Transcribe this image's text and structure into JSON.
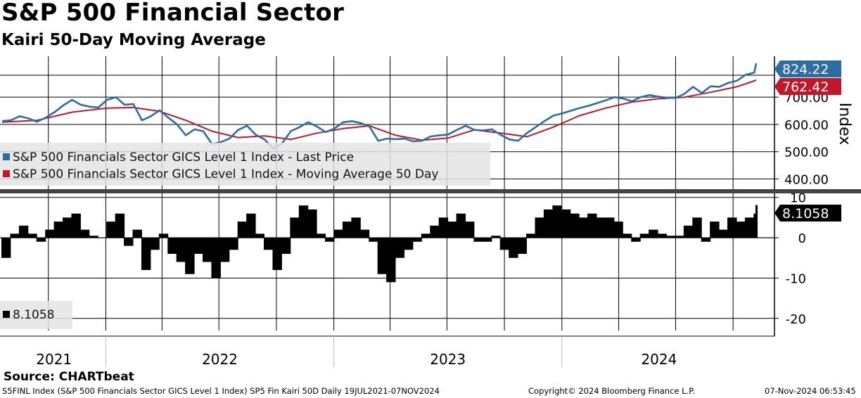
{
  "header": {
    "title": "S&P 500 Financial Sector",
    "subtitle": "Kairi 50-Day Moving Average"
  },
  "colors": {
    "price": "#2e6da4",
    "ma": "#c0182b",
    "kairi": "#000000",
    "grid": "#000000",
    "separator": "#444444"
  },
  "chart_data": [
    {
      "type": "line",
      "panel": "upper",
      "ylabel": "Index",
      "ylim": [
        360,
        850
      ],
      "y_ticks": [
        "400.00",
        "500.00",
        "600.00",
        "700.00"
      ],
      "x_date_range": [
        "2021-07-19",
        "2024-11-07"
      ],
      "x_labels": [
        "2021",
        "2022",
        "2023",
        "2024"
      ],
      "legend": {
        "position": "lower-left",
        "entries": [
          "S&P 500 Financials Sector GICS Level 1 Index - Last Price",
          "S&P 500 Financials Sector GICS Level 1 Index - Moving Average 50 Day"
        ]
      },
      "last_value_labels": {
        "price": "824.22",
        "ma": "762.42"
      },
      "series": [
        {
          "name": "S&P 500 Financials Sector GICS Level 1 Index - Last Price",
          "points": [
            [
              "2021-07-19",
              612
            ],
            [
              "2021-08-02",
              615
            ],
            [
              "2021-08-16",
              630
            ],
            [
              "2021-08-30",
              622
            ],
            [
              "2021-09-13",
              610
            ],
            [
              "2021-09-27",
              625
            ],
            [
              "2021-10-11",
              645
            ],
            [
              "2021-10-25",
              670
            ],
            [
              "2021-11-08",
              690
            ],
            [
              "2021-11-22",
              672
            ],
            [
              "2021-12-06",
              665
            ],
            [
              "2021-12-20",
              662
            ],
            [
              "2022-01-03",
              690
            ],
            [
              "2022-01-17",
              700
            ],
            [
              "2022-01-31",
              672
            ],
            [
              "2022-02-14",
              675
            ],
            [
              "2022-02-28",
              615
            ],
            [
              "2022-03-14",
              630
            ],
            [
              "2022-03-28",
              652
            ],
            [
              "2022-04-11",
              625
            ],
            [
              "2022-04-25",
              600
            ],
            [
              "2022-05-09",
              560
            ],
            [
              "2022-05-23",
              582
            ],
            [
              "2022-06-06",
              575
            ],
            [
              "2022-06-20",
              528
            ],
            [
              "2022-07-04",
              535
            ],
            [
              "2022-07-18",
              548
            ],
            [
              "2022-08-01",
              580
            ],
            [
              "2022-08-15",
              595
            ],
            [
              "2022-08-29",
              562
            ],
            [
              "2022-09-12",
              545
            ],
            [
              "2022-09-26",
              512
            ],
            [
              "2022-10-10",
              530
            ],
            [
              "2022-10-24",
              575
            ],
            [
              "2022-11-07",
              590
            ],
            [
              "2022-11-21",
              608
            ],
            [
              "2022-12-05",
              592
            ],
            [
              "2022-12-19",
              572
            ],
            [
              "2023-01-02",
              585
            ],
            [
              "2023-01-16",
              608
            ],
            [
              "2023-01-30",
              612
            ],
            [
              "2023-02-13",
              605
            ],
            [
              "2023-02-27",
              592
            ],
            [
              "2023-03-13",
              540
            ],
            [
              "2023-03-27",
              548
            ],
            [
              "2023-04-10",
              546
            ],
            [
              "2023-04-24",
              548
            ],
            [
              "2023-05-08",
              538
            ],
            [
              "2023-05-22",
              540
            ],
            [
              "2023-06-05",
              556
            ],
            [
              "2023-06-19",
              560
            ],
            [
              "2023-07-03",
              563
            ],
            [
              "2023-07-17",
              580
            ],
            [
              "2023-07-31",
              595
            ],
            [
              "2023-08-14",
              580
            ],
            [
              "2023-08-28",
              578
            ],
            [
              "2023-09-11",
              582
            ],
            [
              "2023-09-25",
              562
            ],
            [
              "2023-10-09",
              545
            ],
            [
              "2023-10-23",
              540
            ],
            [
              "2023-11-06",
              568
            ],
            [
              "2023-11-20",
              590
            ],
            [
              "2023-12-04",
              612
            ],
            [
              "2023-12-18",
              632
            ],
            [
              "2024-01-01",
              640
            ],
            [
              "2024-01-15",
              650
            ],
            [
              "2024-01-29",
              660
            ],
            [
              "2024-02-12",
              668
            ],
            [
              "2024-02-26",
              678
            ],
            [
              "2024-03-11",
              688
            ],
            [
              "2024-03-25",
              700
            ],
            [
              "2024-04-08",
              695
            ],
            [
              "2024-04-22",
              685
            ],
            [
              "2024-05-06",
              700
            ],
            [
              "2024-05-20",
              708
            ],
            [
              "2024-06-03",
              702
            ],
            [
              "2024-06-17",
              698
            ],
            [
              "2024-07-01",
              697
            ],
            [
              "2024-07-15",
              712
            ],
            [
              "2024-07-29",
              738
            ],
            [
              "2024-08-12",
              715
            ],
            [
              "2024-08-26",
              740
            ],
            [
              "2024-09-09",
              738
            ],
            [
              "2024-09-23",
              752
            ],
            [
              "2024-10-07",
              760
            ],
            [
              "2024-10-21",
              782
            ],
            [
              "2024-11-04",
              790
            ],
            [
              "2024-11-07",
              824.22
            ]
          ]
        },
        {
          "name": "S&P 500 Financials Sector GICS Level 1 Index - Moving Average 50 Day",
          "points": [
            [
              "2021-07-19",
              608
            ],
            [
              "2021-09-13",
              615
            ],
            [
              "2021-11-08",
              645
            ],
            [
              "2022-01-03",
              660
            ],
            [
              "2022-02-14",
              662
            ],
            [
              "2022-03-28",
              648
            ],
            [
              "2022-05-09",
              615
            ],
            [
              "2022-06-20",
              575
            ],
            [
              "2022-08-01",
              552
            ],
            [
              "2022-09-12",
              558
            ],
            [
              "2022-10-24",
              545
            ],
            [
              "2022-12-05",
              568
            ],
            [
              "2023-01-16",
              585
            ],
            [
              "2023-02-27",
              595
            ],
            [
              "2023-04-10",
              560
            ],
            [
              "2023-05-22",
              542
            ],
            [
              "2023-07-03",
              550
            ],
            [
              "2023-08-14",
              580
            ],
            [
              "2023-09-25",
              568
            ],
            [
              "2023-11-06",
              555
            ],
            [
              "2023-12-18",
              590
            ],
            [
              "2024-01-29",
              632
            ],
            [
              "2024-03-11",
              660
            ],
            [
              "2024-04-22",
              682
            ],
            [
              "2024-06-03",
              694
            ],
            [
              "2024-07-15",
              700
            ],
            [
              "2024-08-26",
              718
            ],
            [
              "2024-10-07",
              738
            ],
            [
              "2024-11-07",
              762.42
            ]
          ]
        }
      ]
    },
    {
      "type": "bar",
      "panel": "lower",
      "ylim": [
        -23,
        11
      ],
      "y_ticks": [
        "10",
        "0",
        "-10",
        "-20"
      ],
      "x_date_range": [
        "2021-07-19",
        "2024-11-07"
      ],
      "legend": {
        "position": "lower-left",
        "entries": [
          "8.1058"
        ]
      },
      "last_value_label": "8.1058",
      "series": [
        {
          "name": "8.1058",
          "points": [
            [
              "2021-07-19",
              -5
            ],
            [
              "2021-08-02",
              1
            ],
            [
              "2021-08-16",
              3
            ],
            [
              "2021-08-30",
              1
            ],
            [
              "2021-09-13",
              -1
            ],
            [
              "2021-09-27",
              2
            ],
            [
              "2021-10-11",
              4
            ],
            [
              "2021-10-25",
              5
            ],
            [
              "2021-11-08",
              6
            ],
            [
              "2021-11-22",
              2
            ],
            [
              "2021-12-06",
              0.5
            ],
            [
              "2021-12-20",
              0
            ],
            [
              "2022-01-03",
              4
            ],
            [
              "2022-01-17",
              6
            ],
            [
              "2022-01-31",
              -2
            ],
            [
              "2022-02-14",
              2
            ],
            [
              "2022-02-28",
              -8
            ],
            [
              "2022-03-14",
              -3
            ],
            [
              "2022-03-28",
              1
            ],
            [
              "2022-04-11",
              -4
            ],
            [
              "2022-04-25",
              -6
            ],
            [
              "2022-05-09",
              -9
            ],
            [
              "2022-05-23",
              -4
            ],
            [
              "2022-06-06",
              -6
            ],
            [
              "2022-06-20",
              -10
            ],
            [
              "2022-07-04",
              -6
            ],
            [
              "2022-07-18",
              -3
            ],
            [
              "2022-08-01",
              4
            ],
            [
              "2022-08-15",
              6
            ],
            [
              "2022-08-29",
              1
            ],
            [
              "2022-09-12",
              -3
            ],
            [
              "2022-09-26",
              -8
            ],
            [
              "2022-10-10",
              -4
            ],
            [
              "2022-10-24",
              5
            ],
            [
              "2022-11-07",
              8
            ],
            [
              "2022-11-21",
              7
            ],
            [
              "2022-12-05",
              1
            ],
            [
              "2022-12-19",
              -1
            ],
            [
              "2023-01-02",
              2
            ],
            [
              "2023-01-16",
              4
            ],
            [
              "2023-01-30",
              5
            ],
            [
              "2023-02-13",
              2
            ],
            [
              "2023-02-27",
              -1
            ],
            [
              "2023-03-13",
              -9
            ],
            [
              "2023-03-27",
              -11
            ],
            [
              "2023-04-10",
              -5
            ],
            [
              "2023-04-24",
              -3
            ],
            [
              "2023-05-08",
              -1
            ],
            [
              "2023-05-22",
              1
            ],
            [
              "2023-06-05",
              3
            ],
            [
              "2023-06-19",
              5
            ],
            [
              "2023-07-03",
              4
            ],
            [
              "2023-07-17",
              6
            ],
            [
              "2023-07-31",
              4
            ],
            [
              "2023-08-14",
              -1
            ],
            [
              "2023-08-28",
              -1
            ],
            [
              "2023-09-11",
              0.5
            ],
            [
              "2023-09-25",
              -3
            ],
            [
              "2023-10-09",
              -5
            ],
            [
              "2023-10-23",
              -4
            ],
            [
              "2023-11-06",
              1
            ],
            [
              "2023-11-20",
              5
            ],
            [
              "2023-12-04",
              7
            ],
            [
              "2023-12-18",
              8
            ],
            [
              "2024-01-01",
              7
            ],
            [
              "2024-01-15",
              6
            ],
            [
              "2024-01-29",
              5
            ],
            [
              "2024-02-12",
              6
            ],
            [
              "2024-02-26",
              5
            ],
            [
              "2024-03-11",
              5
            ],
            [
              "2024-03-25",
              4
            ],
            [
              "2024-04-08",
              1
            ],
            [
              "2024-04-22",
              -1
            ],
            [
              "2024-05-06",
              1
            ],
            [
              "2024-05-20",
              2
            ],
            [
              "2024-06-03",
              1
            ],
            [
              "2024-06-17",
              0.5
            ],
            [
              "2024-07-01",
              0.5
            ],
            [
              "2024-07-15",
              3
            ],
            [
              "2024-07-29",
              5
            ],
            [
              "2024-08-12",
              -1
            ],
            [
              "2024-08-26",
              4
            ],
            [
              "2024-09-09",
              2
            ],
            [
              "2024-09-23",
              5
            ],
            [
              "2024-10-07",
              4
            ],
            [
              "2024-10-21",
              5
            ],
            [
              "2024-11-04",
              6
            ],
            [
              "2024-11-07",
              8.1058
            ]
          ]
        }
      ]
    }
  ],
  "source": "Source: CHARTbeat",
  "footer": {
    "left": "S5FINL Index (S&P 500 Financials Sector GICS Level 1 Index) SP5 Fin Kairi 50D  Daily 19JUL2021-07NOV2024",
    "center": "Copyright© 2024 Bloomberg Finance L.P.",
    "right": "07-Nov-2024 06:53:45"
  }
}
